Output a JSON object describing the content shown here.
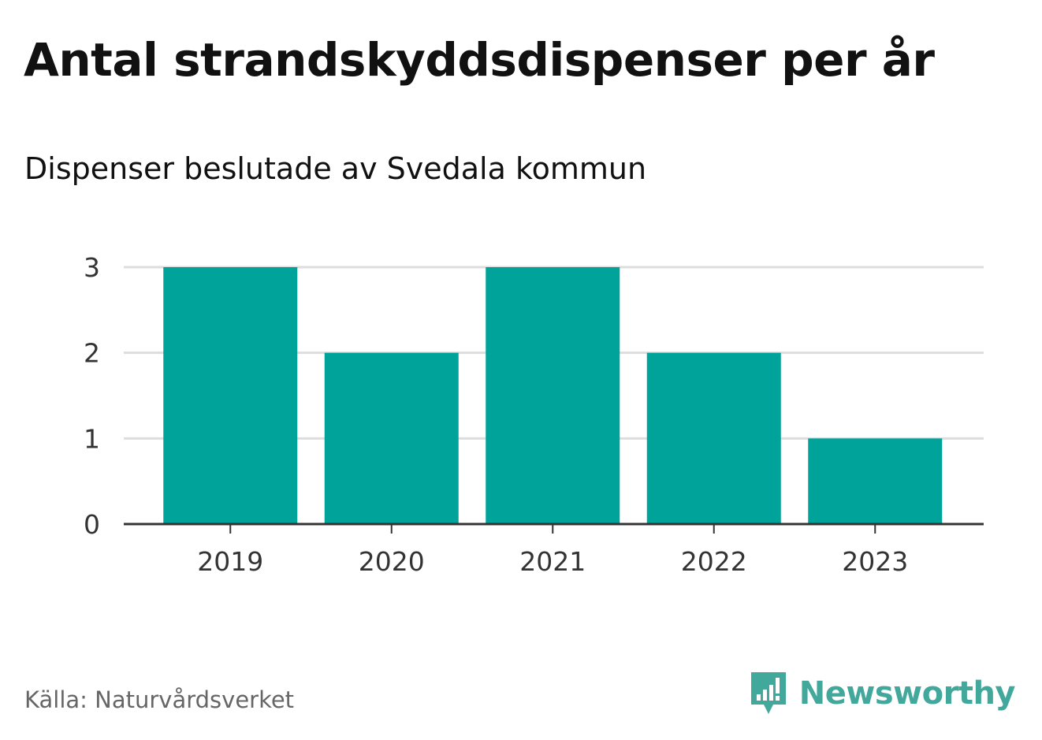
{
  "title": "Antal strandskyddsdispenser per år",
  "subtitle": "Dispenser beslutade av Svedala kommun",
  "source": "Källa: Naturvårdsverket",
  "brand": {
    "name": "Newsworthy",
    "icon": "newsworthy-logo-icon",
    "color": "#43a89c"
  },
  "colors": {
    "bar": "#00a39a",
    "grid": "#dddddd",
    "axis": "#333333"
  },
  "chart_data": {
    "type": "bar",
    "categories": [
      "2019",
      "2020",
      "2021",
      "2022",
      "2023"
    ],
    "values": [
      3,
      2,
      3,
      2,
      1
    ],
    "ylim": [
      0,
      3
    ],
    "yticks": [
      0,
      1,
      2,
      3
    ],
    "grid": true,
    "xlabel": "",
    "ylabel": ""
  }
}
